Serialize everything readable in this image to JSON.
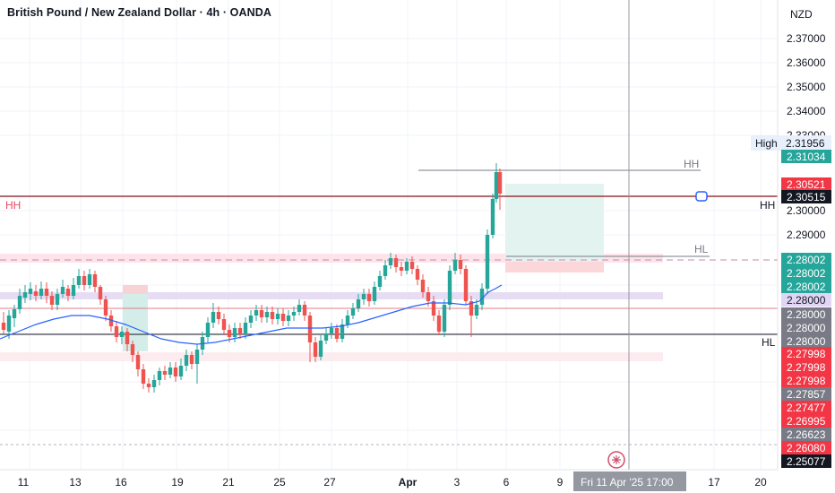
{
  "header": {
    "title": "British Pound / New Zealand Dollar · 4h · OANDA"
  },
  "price_axis": {
    "currency": "NZD",
    "ticks": [
      "2.37000",
      "2.36000",
      "2.35000",
      "2.34000",
      "2.33000",
      "2.30000",
      "2.29000"
    ],
    "high_label": "High",
    "high_value": "2.31956",
    "tags": [
      {
        "text": "2.31034",
        "kind": "green"
      },
      {
        "text": "2.30521",
        "kind": "red"
      },
      {
        "text": "2.30515",
        "kind": "dark"
      },
      {
        "text": "2.28002",
        "kind": "green"
      },
      {
        "text": "2.28002",
        "kind": "green"
      },
      {
        "text": "2.28002",
        "kind": "green"
      },
      {
        "text": "2.28000",
        "kind": "lavender"
      },
      {
        "text": "2.28000",
        "kind": "gray"
      },
      {
        "text": "2.28000",
        "kind": "gray"
      },
      {
        "text": "2.28000",
        "kind": "gray"
      },
      {
        "text": "2.27998",
        "kind": "red"
      },
      {
        "text": "2.27998",
        "kind": "red"
      },
      {
        "text": "2.27998",
        "kind": "red"
      },
      {
        "text": "2.27857",
        "kind": "gray"
      },
      {
        "text": "2.27477",
        "kind": "red"
      },
      {
        "text": "2.26995",
        "kind": "red"
      },
      {
        "text": "2.26623",
        "kind": "gray"
      },
      {
        "text": "2.26080",
        "kind": "red"
      },
      {
        "text": "2.25077",
        "kind": "dark"
      }
    ]
  },
  "time_axis": {
    "labels": [
      "11",
      "13",
      "16",
      "19",
      "21",
      "25",
      "27",
      "Apr",
      "3",
      "6",
      "9",
      "17",
      "20"
    ],
    "crosshair_label": "Fri 11 Apr '25   17:00"
  },
  "annotations": {
    "hh_left": "HH",
    "hh_right": "HH",
    "hh_top": "HH",
    "hl_mid": "HL",
    "hl_right": "HL"
  },
  "colors": {
    "up": "#26a69a",
    "down": "#ef5350",
    "ma": "#2962ff",
    "level_red": "#880e1a",
    "bg": "#ffffff"
  },
  "icons": {
    "crosshair_marker": "event-marker-icon"
  }
}
